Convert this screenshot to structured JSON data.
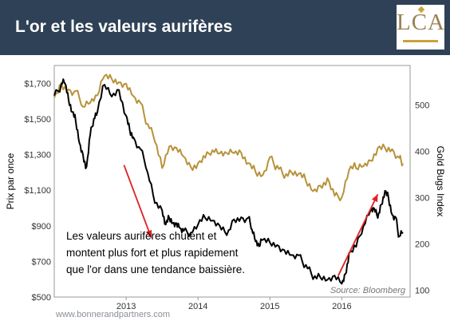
{
  "header": {
    "title": "L'or et les valeurs aurifères",
    "logo_text": "LCA",
    "background": "#2f4156"
  },
  "chart_data": {
    "type": "line",
    "xlim": [
      2012.0,
      2016.95
    ],
    "x_ticks": [
      2013,
      2014,
      2015,
      2016
    ],
    "x_tick_labels": [
      "2013",
      "2014",
      "2015",
      "2016"
    ],
    "left_axis": {
      "label": "Prix par once",
      "ylim": [
        500,
        1800
      ],
      "ticks": [
        500,
        700,
        900,
        1100,
        1300,
        1500,
        1700
      ],
      "tick_labels": [
        "$500",
        "$700",
        "$900",
        "$1,100",
        "$1,300",
        "$1,500",
        "$1,700"
      ]
    },
    "right_axis": {
      "label": "Gold Bugs Index",
      "ylim": [
        85,
        585
      ],
      "ticks": [
        100,
        200,
        300,
        400,
        500
      ],
      "tick_labels": [
        "100",
        "200",
        "300",
        "400",
        "500"
      ]
    },
    "series": [
      {
        "color": "#b8923a",
        "axis": "left",
        "points": [
          [
            2012.0,
            1620
          ],
          [
            2012.1,
            1700
          ],
          [
            2012.2,
            1660
          ],
          [
            2012.3,
            1640
          ],
          [
            2012.4,
            1580
          ],
          [
            2012.5,
            1590
          ],
          [
            2012.6,
            1620
          ],
          [
            2012.7,
            1760
          ],
          [
            2012.8,
            1730
          ],
          [
            2012.9,
            1700
          ],
          [
            2013.0,
            1680
          ],
          [
            2013.1,
            1640
          ],
          [
            2013.2,
            1590
          ],
          [
            2013.3,
            1460
          ],
          [
            2013.4,
            1390
          ],
          [
            2013.5,
            1230
          ],
          [
            2013.6,
            1340
          ],
          [
            2013.7,
            1320
          ],
          [
            2013.8,
            1300
          ],
          [
            2013.9,
            1230
          ],
          [
            2014.0,
            1240
          ],
          [
            2014.1,
            1300
          ],
          [
            2014.2,
            1330
          ],
          [
            2014.3,
            1300
          ],
          [
            2014.4,
            1290
          ],
          [
            2014.5,
            1320
          ],
          [
            2014.6,
            1310
          ],
          [
            2014.7,
            1240
          ],
          [
            2014.8,
            1220
          ],
          [
            2014.9,
            1190
          ],
          [
            2015.0,
            1280
          ],
          [
            2015.1,
            1220
          ],
          [
            2015.2,
            1180
          ],
          [
            2015.3,
            1200
          ],
          [
            2015.4,
            1180
          ],
          [
            2015.5,
            1170
          ],
          [
            2015.6,
            1100
          ],
          [
            2015.7,
            1120
          ],
          [
            2015.8,
            1150
          ],
          [
            2015.9,
            1080
          ],
          [
            2016.0,
            1060
          ],
          [
            2016.1,
            1200
          ],
          [
            2016.2,
            1240
          ],
          [
            2016.3,
            1240
          ],
          [
            2016.4,
            1260
          ],
          [
            2016.5,
            1320
          ],
          [
            2016.6,
            1350
          ],
          [
            2016.7,
            1330
          ],
          [
            2016.8,
            1270
          ],
          [
            2016.85,
            1250
          ]
        ]
      },
      {
        "color": "#000000",
        "axis": "right",
        "points": [
          [
            2012.0,
            520
          ],
          [
            2012.1,
            540
          ],
          [
            2012.15,
            550
          ],
          [
            2012.2,
            510
          ],
          [
            2012.25,
            480
          ],
          [
            2012.3,
            470
          ],
          [
            2012.35,
            420
          ],
          [
            2012.4,
            390
          ],
          [
            2012.45,
            360
          ],
          [
            2012.5,
            440
          ],
          [
            2012.55,
            470
          ],
          [
            2012.6,
            480
          ],
          [
            2012.7,
            550
          ],
          [
            2012.8,
            520
          ],
          [
            2012.9,
            530
          ],
          [
            2013.0,
            470
          ],
          [
            2013.05,
            450
          ],
          [
            2013.1,
            430
          ],
          [
            2013.2,
            400
          ],
          [
            2013.3,
            360
          ],
          [
            2013.4,
            290
          ],
          [
            2013.5,
            270
          ],
          [
            2013.55,
            235
          ],
          [
            2013.6,
            260
          ],
          [
            2013.65,
            245
          ],
          [
            2013.7,
            240
          ],
          [
            2013.75,
            240
          ],
          [
            2013.8,
            230
          ],
          [
            2013.9,
            222
          ],
          [
            2014.0,
            235
          ],
          [
            2014.1,
            260
          ],
          [
            2014.2,
            250
          ],
          [
            2014.3,
            235
          ],
          [
            2014.4,
            225
          ],
          [
            2014.5,
            255
          ],
          [
            2014.6,
            255
          ],
          [
            2014.7,
            250
          ],
          [
            2014.75,
            235
          ],
          [
            2014.8,
            205
          ],
          [
            2014.85,
            190
          ],
          [
            2014.9,
            215
          ],
          [
            2015.0,
            205
          ],
          [
            2015.1,
            195
          ],
          [
            2015.2,
            180
          ],
          [
            2015.3,
            180
          ],
          [
            2015.4,
            175
          ],
          [
            2015.5,
            150
          ],
          [
            2015.6,
            130
          ],
          [
            2015.7,
            130
          ],
          [
            2015.8,
            120
          ],
          [
            2015.9,
            125
          ],
          [
            2016.0,
            118
          ],
          [
            2016.05,
            135
          ],
          [
            2016.1,
            175
          ],
          [
            2016.2,
            200
          ],
          [
            2016.3,
            240
          ],
          [
            2016.4,
            270
          ],
          [
            2016.45,
            270
          ],
          [
            2016.5,
            260
          ],
          [
            2016.55,
            285
          ],
          [
            2016.6,
            310
          ],
          [
            2016.65,
            305
          ],
          [
            2016.7,
            265
          ],
          [
            2016.75,
            255
          ],
          [
            2016.8,
            210
          ],
          [
            2016.85,
            225
          ]
        ]
      }
    ],
    "arrows": [
      {
        "from": [
          2012.97,
          370
        ],
        "to": [
          2013.35,
          213
        ],
        "axis": "right",
        "color": "#e02020"
      },
      {
        "from": [
          2015.95,
          131
        ],
        "to": [
          2016.5,
          307
        ],
        "axis": "right",
        "color": "#e02020"
      }
    ],
    "annotation": [
      "Les valeurs aurifères chutent et",
      "montent plus fort et plus rapidement",
      "que l'or dans une tendance baissière."
    ],
    "source": "Source: Bloomberg"
  },
  "footer": {
    "website": "www.bonnerandpartners.com"
  }
}
